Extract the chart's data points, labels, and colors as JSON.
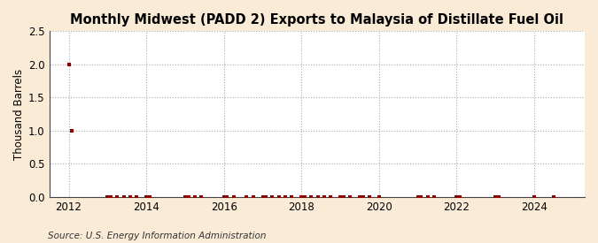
{
  "title": "Monthly Midwest (PADD 2) Exports to Malaysia of Distillate Fuel Oil",
  "ylabel": "Thousand Barrels",
  "source": "Source: U.S. Energy Information Administration",
  "ylim": [
    0,
    2.5
  ],
  "yticks": [
    0.0,
    0.5,
    1.0,
    1.5,
    2.0,
    2.5
  ],
  "xlim_start": 2011.5,
  "xlim_end": 2025.3,
  "xticks": [
    2012,
    2014,
    2016,
    2018,
    2020,
    2022,
    2024
  ],
  "figure_bg_color": "#faebd7",
  "plot_bg_color": "#ffffff",
  "marker_color": "#8b0000",
  "marker_size": 4,
  "grid_color": "#aaaaaa",
  "title_fontsize": 10.5,
  "label_fontsize": 8.5,
  "tick_fontsize": 8.5,
  "source_fontsize": 7.5,
  "data_points": [
    [
      2012.0,
      2.0
    ],
    [
      2012.083,
      1.0
    ],
    [
      2013.0,
      0.0
    ],
    [
      2013.083,
      0.0
    ],
    [
      2013.25,
      0.0
    ],
    [
      2013.417,
      0.0
    ],
    [
      2013.583,
      0.0
    ],
    [
      2013.75,
      0.0
    ],
    [
      2014.0,
      0.0
    ],
    [
      2014.083,
      0.0
    ],
    [
      2015.0,
      0.0
    ],
    [
      2015.083,
      0.0
    ],
    [
      2015.25,
      0.0
    ],
    [
      2015.417,
      0.0
    ],
    [
      2016.0,
      0.0
    ],
    [
      2016.083,
      0.0
    ],
    [
      2016.25,
      0.0
    ],
    [
      2016.583,
      0.0
    ],
    [
      2016.75,
      0.0
    ],
    [
      2017.0,
      0.0
    ],
    [
      2017.083,
      0.0
    ],
    [
      2017.25,
      0.0
    ],
    [
      2017.417,
      0.0
    ],
    [
      2017.583,
      0.0
    ],
    [
      2017.75,
      0.0
    ],
    [
      2018.0,
      0.0
    ],
    [
      2018.083,
      0.0
    ],
    [
      2018.25,
      0.0
    ],
    [
      2018.417,
      0.0
    ],
    [
      2018.583,
      0.0
    ],
    [
      2018.75,
      0.0
    ],
    [
      2019.0,
      0.0
    ],
    [
      2019.083,
      0.0
    ],
    [
      2019.25,
      0.0
    ],
    [
      2019.5,
      0.0
    ],
    [
      2019.583,
      0.0
    ],
    [
      2019.75,
      0.0
    ],
    [
      2020.0,
      0.0
    ],
    [
      2021.0,
      0.0
    ],
    [
      2021.083,
      0.0
    ],
    [
      2021.25,
      0.0
    ],
    [
      2021.417,
      0.0
    ],
    [
      2022.0,
      0.0
    ],
    [
      2022.083,
      0.0
    ],
    [
      2023.0,
      0.0
    ],
    [
      2023.083,
      0.0
    ],
    [
      2024.0,
      0.0
    ],
    [
      2024.5,
      0.0
    ]
  ]
}
